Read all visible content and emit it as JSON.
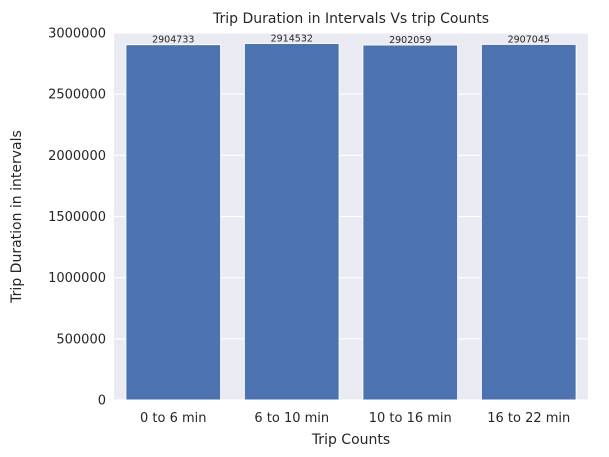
{
  "chart_data": {
    "type": "bar",
    "title": "Trip Duration in Intervals Vs trip Counts",
    "xlabel": "Trip Counts",
    "ylabel": "Trip Duration in intervals",
    "categories": [
      "0 to 6 min",
      "6 to 10 min",
      "10 to 16 min",
      "16 to 22 min"
    ],
    "values": [
      2904733,
      2914532,
      2902059,
      2907045
    ],
    "data_labels": [
      "2904733",
      "2914532",
      "2902059",
      "2907045"
    ],
    "ylim": [
      0,
      3000000
    ],
    "yticks": [
      0,
      500000,
      1000000,
      1500000,
      2000000,
      2500000,
      3000000
    ],
    "ytick_labels": [
      "0",
      "500000",
      "1000000",
      "1500000",
      "2000000",
      "2500000",
      "3000000"
    ],
    "grid": true,
    "colors": {
      "bar": "#4c72b0",
      "background": "#eaeaf2",
      "grid": "#ffffff"
    }
  }
}
